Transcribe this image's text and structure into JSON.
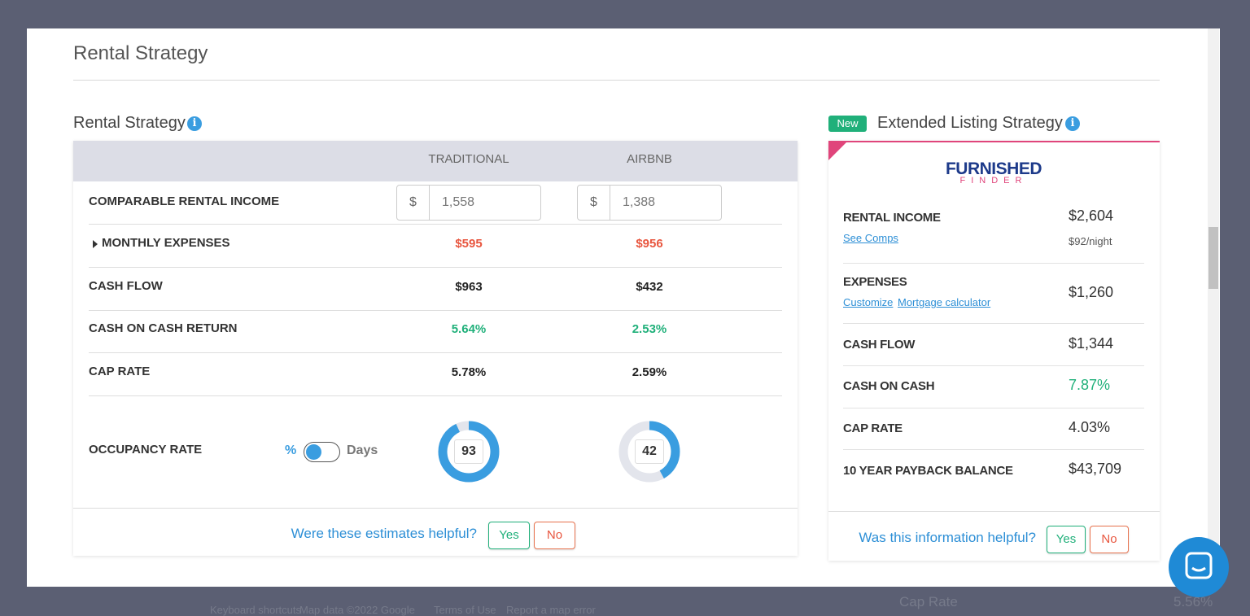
{
  "modal": {
    "title": "Rental Strategy"
  },
  "left": {
    "title": "Rental Strategy",
    "columns": [
      "TRADITIONAL",
      "AIRBNB"
    ],
    "income": {
      "label": "COMPARABLE RENTAL INCOME",
      "currency": "$",
      "values": [
        "1,558",
        "1,388"
      ]
    },
    "rows": [
      {
        "label": "MONTHLY EXPENSES",
        "values": [
          "$595",
          "$956"
        ],
        "color": "#e8563f"
      },
      {
        "label": "CASH FLOW",
        "values": [
          "$963",
          "$432"
        ],
        "color": "#222222"
      },
      {
        "label": "CASH ON CASH RETURN",
        "values": [
          "5.64%",
          "2.53%"
        ],
        "color": "#20b07a"
      },
      {
        "label": "CAP RATE",
        "values": [
          "5.78%",
          "2.59%"
        ],
        "color": "#222222"
      }
    ],
    "occupancy": {
      "label": "OCCUPANCY RATE",
      "toggle": [
        "%",
        "Days"
      ],
      "values": [
        93,
        42
      ]
    },
    "feedback": {
      "question": "Were these estimates helpful?",
      "yes": "Yes",
      "no": "No"
    }
  },
  "right": {
    "badge": "New",
    "title": "Extended Listing Strategy",
    "logo": {
      "top": "FURNISHED",
      "bottom": "FINDER"
    },
    "rows": [
      {
        "label": "RENTAL INCOME",
        "value": "$2,604",
        "links": [
          "See Comps"
        ],
        "note": "$92/night"
      },
      {
        "label": "EXPENSES",
        "value": "$1,260",
        "links": [
          "Customize",
          "Mortgage calculator"
        ]
      },
      {
        "label": "CASH FLOW",
        "value": "$1,344"
      },
      {
        "label": "CASH ON CASH",
        "value": "7.87%",
        "color": "#20b07a"
      },
      {
        "label": "CAP RATE",
        "value": "4.03%"
      },
      {
        "label": "10 YEAR PAYBACK BALANCE",
        "value": "$43,709"
      }
    ],
    "feedback": {
      "question": "Was this information helpful?",
      "yes": "Yes",
      "no": "No"
    }
  },
  "background": {
    "labels": [
      "Keyboard shortcuts",
      "Map data ©2022 Google",
      "Terms of Use",
      "Report a map error",
      "Cap Rate",
      "5.56%"
    ]
  }
}
